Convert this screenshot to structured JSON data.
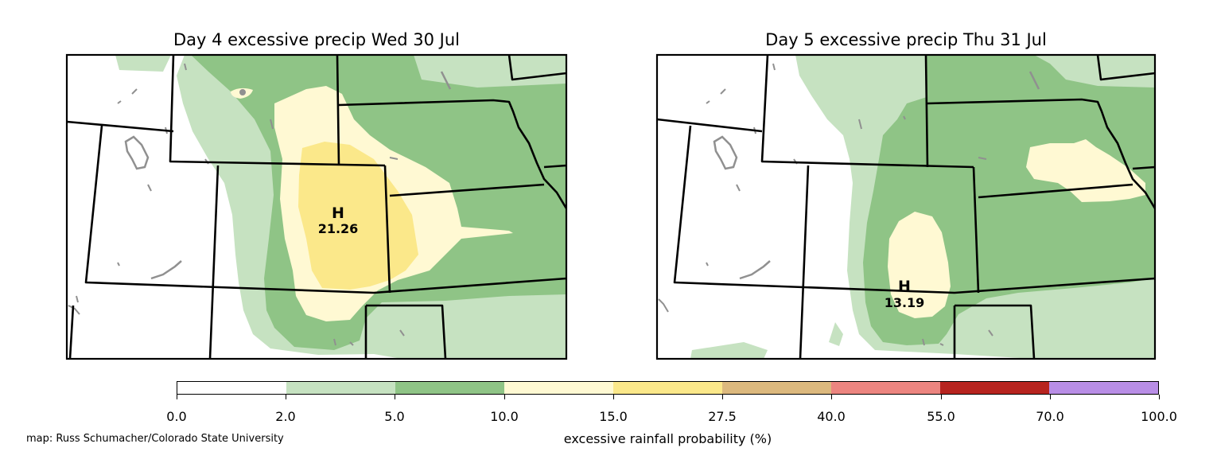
{
  "panels": [
    {
      "title": "Day 4 excessive precip  Wed 30 Jul",
      "max_letter": "H",
      "max_value": "21.26"
    },
    {
      "title": "Day 5 excessive precip  Thu 31 Jul",
      "max_letter": "H",
      "max_value": "13.19"
    }
  ],
  "colorbar": {
    "label": "excessive rainfall probability (%)",
    "ticks": [
      "0.0",
      "2.0",
      "5.0",
      "10.0",
      "15.0",
      "27.5",
      "40.0",
      "55.0",
      "70.0",
      "100.0"
    ],
    "colors": [
      "#ffffff",
      "#c6e2c1",
      "#8fc486",
      "#fff9d3",
      "#fbe88a",
      "#dcb97e",
      "#ec8580",
      "#b7241f",
      "#b98ee6"
    ]
  },
  "credit": "map: Russ Schumacher/Colorado State University"
}
